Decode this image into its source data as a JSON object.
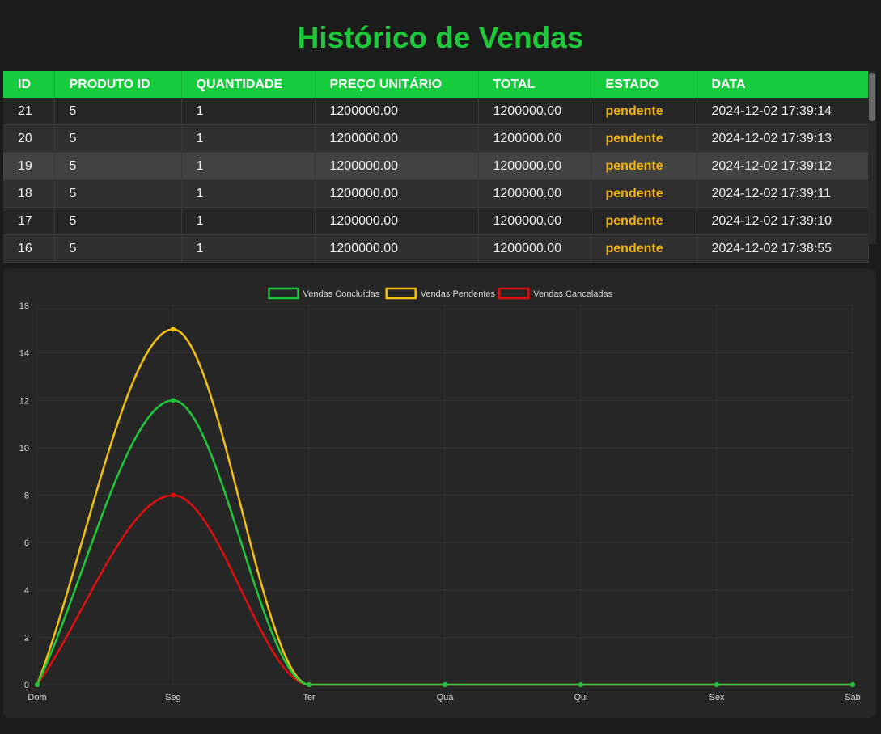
{
  "page": {
    "title": "Histórico de Vendas"
  },
  "table": {
    "columns": [
      "ID",
      "PRODUTO ID",
      "QUANTIDADE",
      "PREÇO UNITÁRIO",
      "TOTAL",
      "ESTADO",
      "DATA"
    ],
    "rows": [
      {
        "id": "21",
        "produto_id": "5",
        "quantidade": "1",
        "preco": "1200000.00",
        "total": "1200000.00",
        "estado": "pendente",
        "data": "2024-12-02 17:39:14"
      },
      {
        "id": "20",
        "produto_id": "5",
        "quantidade": "1",
        "preco": "1200000.00",
        "total": "1200000.00",
        "estado": "pendente",
        "data": "2024-12-02 17:39:13"
      },
      {
        "id": "19",
        "produto_id": "5",
        "quantidade": "1",
        "preco": "1200000.00",
        "total": "1200000.00",
        "estado": "pendente",
        "data": "2024-12-02 17:39:12"
      },
      {
        "id": "18",
        "produto_id": "5",
        "quantidade": "1",
        "preco": "1200000.00",
        "total": "1200000.00",
        "estado": "pendente",
        "data": "2024-12-02 17:39:11"
      },
      {
        "id": "17",
        "produto_id": "5",
        "quantidade": "1",
        "preco": "1200000.00",
        "total": "1200000.00",
        "estado": "pendente",
        "data": "2024-12-02 17:39:10"
      },
      {
        "id": "16",
        "produto_id": "5",
        "quantidade": "1",
        "preco": "1200000.00",
        "total": "1200000.00",
        "estado": "pendente",
        "data": "2024-12-02 17:38:55"
      }
    ]
  },
  "colors": {
    "accent": "#16cc3c",
    "pending": "#f2b30f",
    "concluded": "#1dc93b",
    "canceled": "#e00e0e"
  },
  "chart_data": {
    "type": "line",
    "categories": [
      "Dom",
      "Seg",
      "Ter",
      "Qua",
      "Qui",
      "Sex",
      "Sáb"
    ],
    "series": [
      {
        "name": "Vendas Concluídas",
        "color": "#1dc93b",
        "values": [
          0,
          12,
          0,
          0,
          0,
          0,
          0
        ]
      },
      {
        "name": "Vendas Pendentes",
        "color": "#f2c00f",
        "values": [
          0,
          15,
          0,
          0,
          0,
          0,
          0
        ]
      },
      {
        "name": "Vendas Canceladas",
        "color": "#e00e0e",
        "values": [
          0,
          8,
          0,
          0,
          0,
          0,
          0
        ]
      }
    ],
    "ylim": [
      0,
      16
    ],
    "yticks": [
      0,
      2,
      4,
      6,
      8,
      10,
      12,
      14,
      16
    ],
    "grid": true,
    "legend": "top-center",
    "curve": "smooth"
  }
}
